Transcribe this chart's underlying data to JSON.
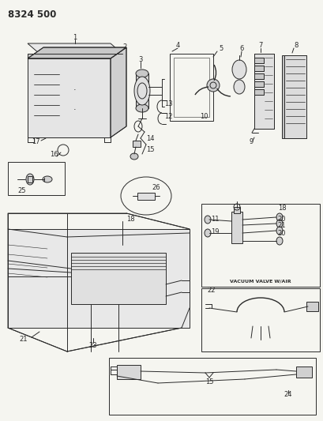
{
  "title": "8324 500",
  "bg_color": "#f5f5f0",
  "fig_width": 4.1,
  "fig_height": 5.33,
  "dpi": 100,
  "line_color": "#2a2a2a",
  "label_fontsize": 6.0
}
